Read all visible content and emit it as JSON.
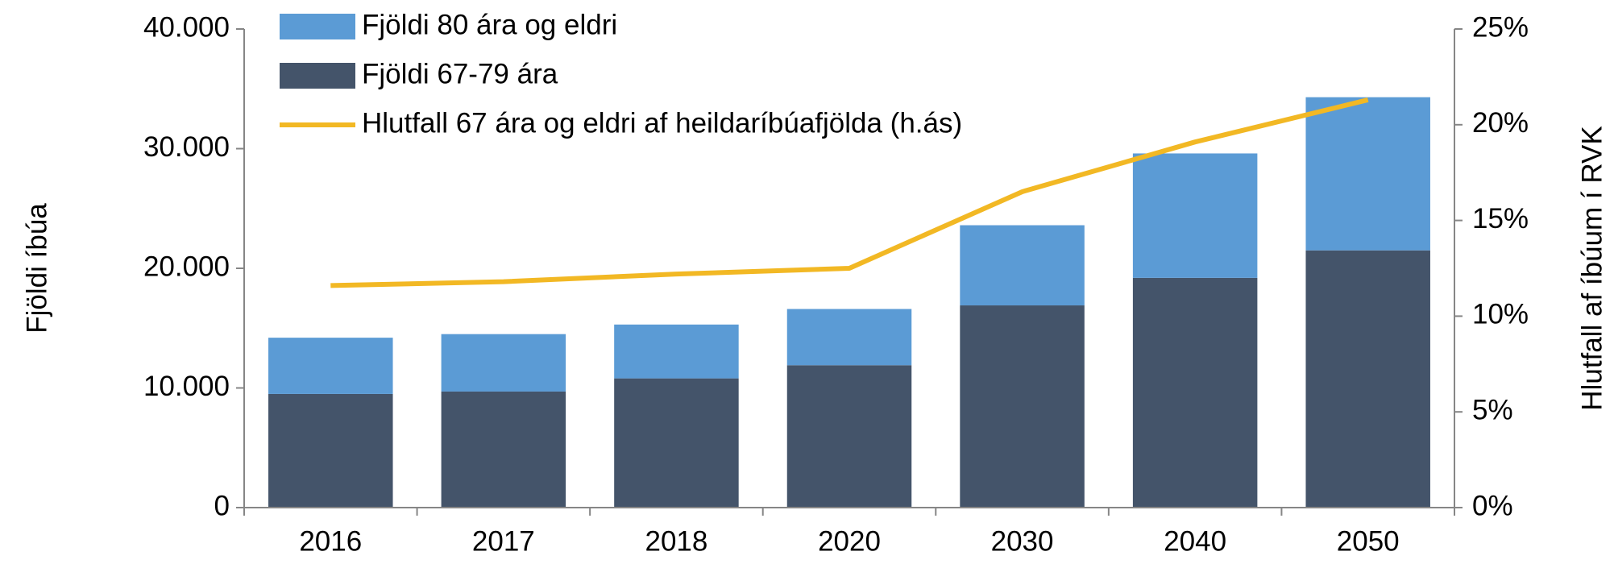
{
  "chart_data": {
    "type": "bar",
    "stacked": true,
    "categories": [
      "2016",
      "2017",
      "2018",
      "2020",
      "2030",
      "2040",
      "2050"
    ],
    "series": [
      {
        "name": "Fjöldi 80 ára og eldri",
        "color": "#5b9bd5",
        "values": [
          4700,
          4800,
          4500,
          4700,
          6700,
          10400,
          12800
        ]
      },
      {
        "name": "Fjöldi 67-79 ára",
        "color": "#44546a",
        "values": [
          9500,
          9700,
          10800,
          11900,
          16900,
          19200,
          21500
        ]
      },
      {
        "name": "Hlutfall 67 ára og eldri af heildaríbúafjölda (h.ás)",
        "color": "#f2b824",
        "type": "line",
        "axis": "y2",
        "values": [
          11.6,
          11.8,
          12.2,
          12.5,
          16.5,
          19.1,
          21.3
        ]
      }
    ],
    "ylabel": "Fjöldi íbúa",
    "y2label": "Hlutfall af íbúum í RVK",
    "ylim": [
      0,
      40000
    ],
    "yticks": [
      0,
      {
        "value": 10000,
        "label": "10.000"
      },
      {
        "value": 20000,
        "label": "20.000"
      },
      {
        "value": 30000,
        "label": "30.000"
      },
      {
        "value": 40000,
        "label": "40.000"
      }
    ],
    "y2lim": [
      0,
      25
    ],
    "y2ticks": [
      {
        "value": 0,
        "label": "0%"
      },
      {
        "value": 5,
        "label": "5%"
      },
      {
        "value": 10,
        "label": "10%"
      },
      {
        "value": 15,
        "label": "15%"
      },
      {
        "value": 20,
        "label": "20%"
      },
      {
        "value": 25,
        "label": "25%"
      }
    ],
    "legend": "top-left"
  }
}
